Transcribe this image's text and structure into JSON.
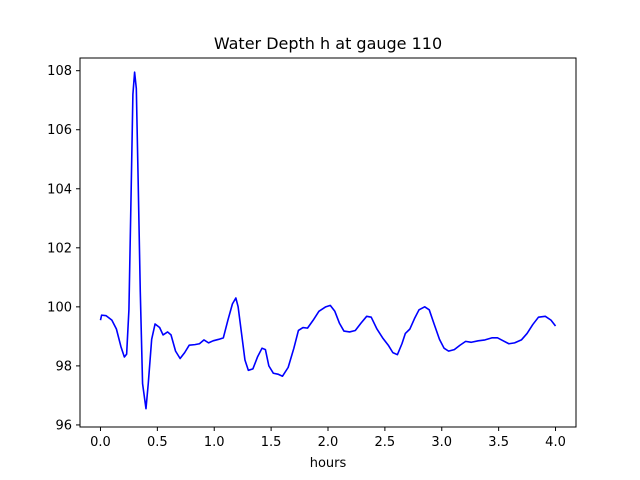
{
  "chart_data": {
    "type": "line",
    "title": "Water Depth h at gauge 110",
    "xlabel": "hours",
    "ylabel": "",
    "xlim": [
      -0.18,
      4.18
    ],
    "ylim": [
      95.93,
      108.43
    ],
    "x_ticks": [
      0.0,
      0.5,
      1.0,
      1.5,
      2.0,
      2.5,
      3.0,
      3.5,
      4.0
    ],
    "x_tick_labels": [
      "0.0",
      "0.5",
      "1.0",
      "1.5",
      "2.0",
      "2.5",
      "3.0",
      "3.5",
      "4.0"
    ],
    "y_ticks": [
      96,
      98,
      100,
      102,
      104,
      106,
      108
    ],
    "y_tick_labels": [
      "96",
      "98",
      "100",
      "102",
      "104",
      "106",
      "108"
    ],
    "grid": false,
    "series": [
      {
        "color": "#0000ff",
        "points": [
          [
            0.0,
            99.55
          ],
          [
            0.01,
            99.72
          ],
          [
            0.05,
            99.7
          ],
          [
            0.1,
            99.55
          ],
          [
            0.14,
            99.25
          ],
          [
            0.18,
            98.65
          ],
          [
            0.21,
            98.3
          ],
          [
            0.23,
            98.4
          ],
          [
            0.25,
            99.9
          ],
          [
            0.27,
            104.0
          ],
          [
            0.285,
            107.2
          ],
          [
            0.3,
            107.95
          ],
          [
            0.315,
            107.4
          ],
          [
            0.33,
            104.5
          ],
          [
            0.35,
            100.5
          ],
          [
            0.37,
            97.4
          ],
          [
            0.4,
            96.55
          ],
          [
            0.42,
            97.4
          ],
          [
            0.45,
            98.9
          ],
          [
            0.48,
            99.42
          ],
          [
            0.52,
            99.3
          ],
          [
            0.55,
            99.05
          ],
          [
            0.59,
            99.15
          ],
          [
            0.62,
            99.05
          ],
          [
            0.66,
            98.5
          ],
          [
            0.7,
            98.25
          ],
          [
            0.74,
            98.45
          ],
          [
            0.78,
            98.7
          ],
          [
            0.83,
            98.72
          ],
          [
            0.87,
            98.75
          ],
          [
            0.91,
            98.88
          ],
          [
            0.95,
            98.78
          ],
          [
            0.99,
            98.85
          ],
          [
            1.04,
            98.9
          ],
          [
            1.08,
            98.95
          ],
          [
            1.12,
            99.55
          ],
          [
            1.16,
            100.1
          ],
          [
            1.19,
            100.3
          ],
          [
            1.21,
            100.0
          ],
          [
            1.24,
            99.1
          ],
          [
            1.27,
            98.2
          ],
          [
            1.3,
            97.85
          ],
          [
            1.34,
            97.9
          ],
          [
            1.38,
            98.3
          ],
          [
            1.42,
            98.6
          ],
          [
            1.45,
            98.55
          ],
          [
            1.48,
            98.0
          ],
          [
            1.52,
            97.75
          ],
          [
            1.56,
            97.72
          ],
          [
            1.6,
            97.65
          ],
          [
            1.65,
            97.95
          ],
          [
            1.7,
            98.6
          ],
          [
            1.74,
            99.2
          ],
          [
            1.78,
            99.3
          ],
          [
            1.82,
            99.28
          ],
          [
            1.87,
            99.55
          ],
          [
            1.92,
            99.85
          ],
          [
            1.98,
            100.0
          ],
          [
            2.02,
            100.05
          ],
          [
            2.06,
            99.85
          ],
          [
            2.1,
            99.45
          ],
          [
            2.14,
            99.18
          ],
          [
            2.19,
            99.15
          ],
          [
            2.24,
            99.2
          ],
          [
            2.29,
            99.45
          ],
          [
            2.34,
            99.68
          ],
          [
            2.38,
            99.65
          ],
          [
            2.43,
            99.25
          ],
          [
            2.48,
            98.95
          ],
          [
            2.53,
            98.7
          ],
          [
            2.57,
            98.45
          ],
          [
            2.61,
            98.38
          ],
          [
            2.65,
            98.75
          ],
          [
            2.68,
            99.1
          ],
          [
            2.72,
            99.25
          ],
          [
            2.76,
            99.6
          ],
          [
            2.8,
            99.9
          ],
          [
            2.85,
            100.0
          ],
          [
            2.89,
            99.9
          ],
          [
            2.93,
            99.45
          ],
          [
            2.98,
            98.9
          ],
          [
            3.02,
            98.6
          ],
          [
            3.06,
            98.5
          ],
          [
            3.11,
            98.55
          ],
          [
            3.16,
            98.7
          ],
          [
            3.21,
            98.83
          ],
          [
            3.26,
            98.8
          ],
          [
            3.32,
            98.85
          ],
          [
            3.38,
            98.88
          ],
          [
            3.44,
            98.95
          ],
          [
            3.49,
            98.95
          ],
          [
            3.54,
            98.85
          ],
          [
            3.59,
            98.75
          ],
          [
            3.64,
            98.78
          ],
          [
            3.7,
            98.88
          ],
          [
            3.75,
            99.1
          ],
          [
            3.8,
            99.4
          ],
          [
            3.85,
            99.65
          ],
          [
            3.91,
            99.68
          ],
          [
            3.96,
            99.55
          ],
          [
            4.0,
            99.35
          ]
        ]
      }
    ]
  }
}
